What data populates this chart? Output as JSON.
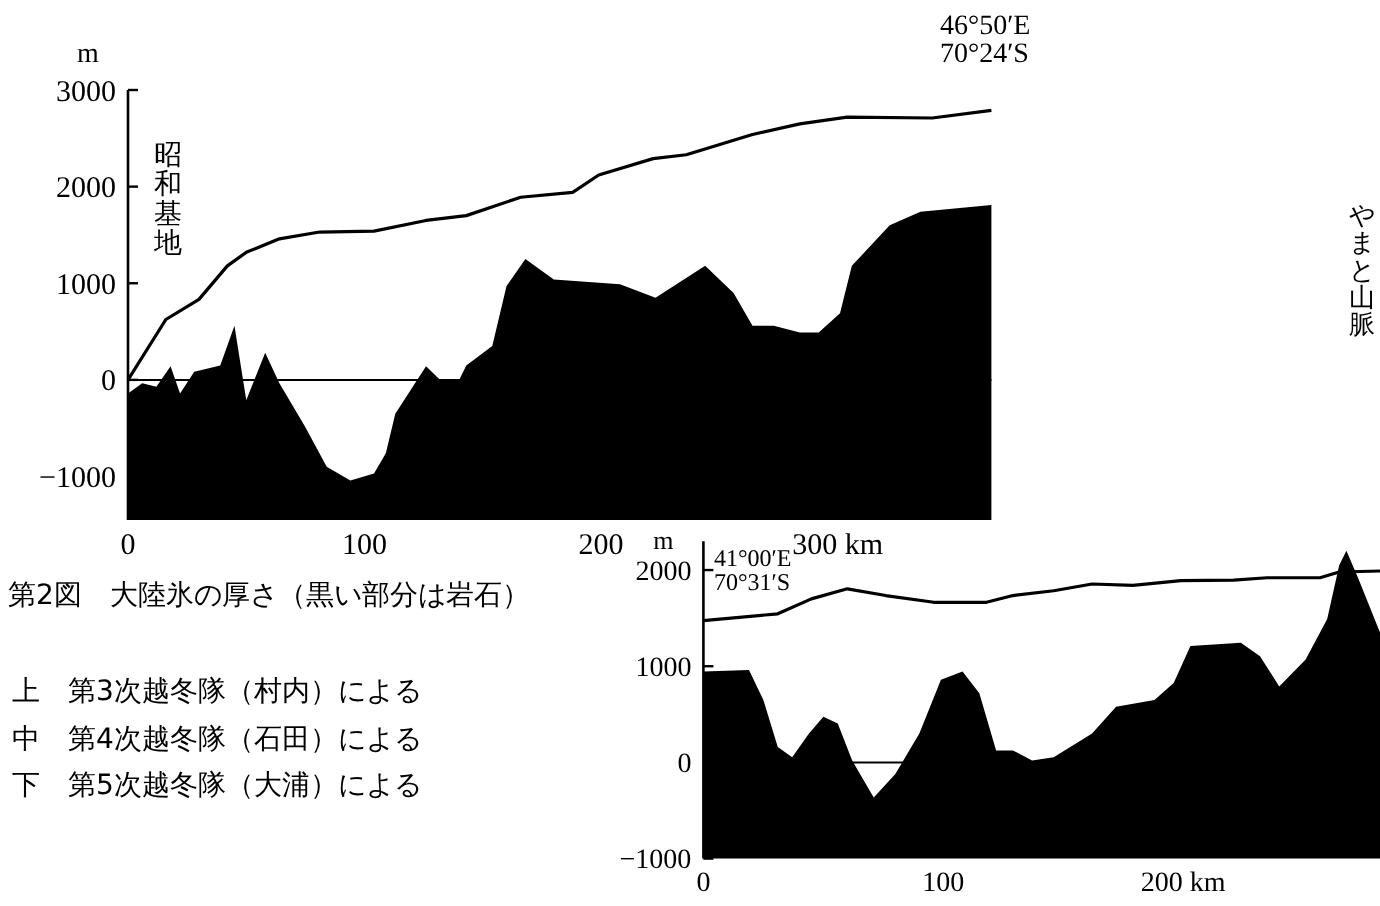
{
  "chart_data": [
    {
      "type": "area",
      "ylabel": "m",
      "xlim": [
        0,
        365
      ],
      "ylim": [
        -1450,
        3000
      ],
      "xticks": [
        0,
        100,
        200,
        {
          "value": 300,
          "label": "300 km"
        }
      ],
      "yticks": [
        3000,
        2000,
        1000,
        0,
        {
          "value": -1000,
          "label": "−1000"
        }
      ],
      "ref_lines": [
        {
          "axis": "y",
          "value": 0,
          "label": null,
          "color": "#000000"
        }
      ],
      "series": [
        {
          "type": "line",
          "color": "#000000",
          "x": [
            0,
            16,
            30,
            42,
            50,
            64,
            81,
            104,
            126,
            143,
            166,
            188,
            199,
            222,
            236,
            264,
            284,
            304,
            340,
            365
          ],
          "values": [
            0,
            625,
            833,
            1180,
            1320,
            1460,
            1530,
            1540,
            1650,
            1700,
            1890,
            1940,
            2120,
            2290,
            2330,
            2540,
            2650,
            2720,
            2710,
            2790
          ]
        },
        {
          "type": "area",
          "color": "#000000",
          "x": [
            0,
            6,
            12,
            18,
            22,
            28,
            39,
            45,
            50,
            58,
            64,
            75,
            84,
            94,
            104,
            109,
            113,
            126,
            132,
            140,
            143,
            154,
            160,
            168,
            180,
            208,
            223,
            244,
            256,
            264,
            273,
            284,
            292,
            301,
            306,
            322,
            335,
            365
          ],
          "values": [
            -140,
            -35,
            -70,
            140,
            -140,
            85,
            150,
            560,
            -210,
            280,
            -35,
            -490,
            -900,
            -1040,
            -970,
            -760,
            -350,
            140,
            0,
            0,
            150,
            350,
            970,
            1250,
            1040,
            990,
            850,
            1180,
            900,
            560,
            560,
            490,
            490,
            690,
            1180,
            1600,
            1740,
            1810
          ]
        }
      ],
      "annotations": [
        "昭和基地",
        "46°50′E 70°24′S",
        "第2図　大陸氷の厚さ（黒い部分は岩石）",
        "上　第3次越冬隊（村内）による",
        "中　第4次越冬隊（石田）による",
        "下　第5次越冬隊（大浦）による"
      ]
    },
    {
      "type": "area",
      "ylabel": "m",
      "xlim": [
        0,
        282
      ],
      "ylim": [
        -1000,
        2300
      ],
      "xticks": [
        0,
        100,
        {
          "value": 200,
          "label": "200 km"
        }
      ],
      "yticks": [
        2000,
        1000,
        0,
        {
          "value": -1000,
          "label": "−1000"
        }
      ],
      "ref_lines": [
        {
          "axis": "y",
          "value": 0,
          "label": null,
          "color": "#000000"
        }
      ],
      "series": [
        {
          "type": "line",
          "color": "#000000",
          "x": [
            0,
            31,
            45,
            60,
            76,
            96,
            118,
            129,
            146,
            162,
            179,
            199,
            221,
            235,
            257,
            265,
            282
          ],
          "values": [
            1475,
            1545,
            1700,
            1805,
            1735,
            1665,
            1665,
            1735,
            1785,
            1855,
            1840,
            1890,
            1895,
            1920,
            1920,
            1980,
            1990
          ]
        },
        {
          "type": "area",
          "color": "#000000",
          "x": [
            0,
            19,
            25,
            31,
            37,
            44,
            50,
            56,
            62,
            71,
            80,
            90,
            99,
            108,
            115,
            122,
            129,
            137,
            146,
            162,
            172,
            188,
            196,
            203,
            224,
            232,
            240,
            251,
            260,
            265,
            268,
            273,
            282
          ],
          "values": [
            945,
            960,
            650,
            160,
            55,
            300,
            475,
            405,
            20,
            -365,
            -120,
            300,
            860,
            945,
            720,
            125,
            125,
            20,
            55,
            300,
            580,
            650,
            825,
            1210,
            1245,
            1105,
            790,
            1070,
            1490,
            2050,
            2200,
            1910,
            1350
          ]
        }
      ],
      "annotations": [
        "41°00′E 70°31′S",
        "やまと山脈"
      ]
    }
  ]
}
